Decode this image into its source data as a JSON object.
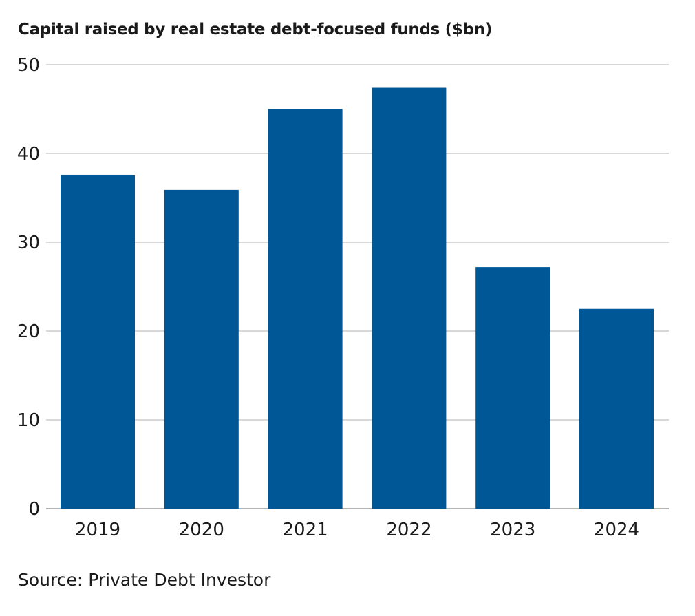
{
  "chart_data": {
    "type": "bar",
    "title": "Capital raised by real estate debt-focused funds ($bn)",
    "categories": [
      "2019",
      "2020",
      "2021",
      "2022",
      "2023",
      "2024"
    ],
    "values": [
      37.6,
      35.9,
      45.0,
      47.4,
      27.2,
      22.5
    ],
    "ylim": [
      0,
      50
    ],
    "yticks": [
      "0",
      "10",
      "20",
      "30",
      "40",
      "50"
    ],
    "xlabel": "",
    "ylabel": "",
    "grid": true,
    "bar_color": "#005796",
    "grid_color": "#cccccc"
  },
  "source": "Source: Private Debt Investor"
}
